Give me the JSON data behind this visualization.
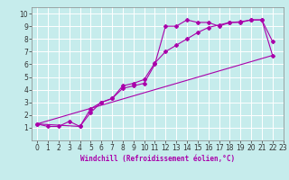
{
  "xlabel": "Windchill (Refroidissement éolien,°C)",
  "xlim": [
    -0.5,
    23
  ],
  "ylim": [
    0,
    10.5
  ],
  "xticks": [
    0,
    1,
    2,
    3,
    4,
    5,
    6,
    7,
    8,
    9,
    10,
    11,
    12,
    13,
    14,
    15,
    16,
    17,
    18,
    19,
    20,
    21,
    22,
    23
  ],
  "yticks": [
    1,
    2,
    3,
    4,
    5,
    6,
    7,
    8,
    9,
    10
  ],
  "bg_color": "#c6ecec",
  "grid_color": "#ffffff",
  "line_color": "#aa00aa",
  "marker": "D",
  "marker_size": 2.0,
  "line_width": 0.8,
  "line1_x": [
    0,
    1,
    2,
    3,
    4,
    5,
    6,
    7,
    8,
    9,
    10,
    11,
    12,
    13,
    14,
    15,
    16,
    17,
    18,
    19,
    20,
    21,
    22
  ],
  "line1_y": [
    1.3,
    1.1,
    1.1,
    1.5,
    1.1,
    2.2,
    3.0,
    3.3,
    4.1,
    4.3,
    4.5,
    6.0,
    9.0,
    9.0,
    9.5,
    9.3,
    9.3,
    9.0,
    9.3,
    9.3,
    9.5,
    9.5,
    7.8
  ],
  "line2_x": [
    0,
    4,
    5,
    6,
    7,
    8,
    9,
    10,
    11,
    12,
    13,
    14,
    15,
    16,
    17,
    18,
    19,
    20,
    21,
    22
  ],
  "line2_y": [
    1.3,
    1.1,
    2.5,
    3.0,
    3.3,
    4.3,
    4.5,
    4.8,
    6.1,
    7.0,
    7.5,
    8.0,
    8.5,
    8.9,
    9.1,
    9.3,
    9.35,
    9.5,
    9.5,
    6.7
  ],
  "line3_x": [
    0,
    22
  ],
  "line3_y": [
    1.3,
    6.7
  ],
  "tick_fontsize": 5.5,
  "xlabel_fontsize": 5.5
}
